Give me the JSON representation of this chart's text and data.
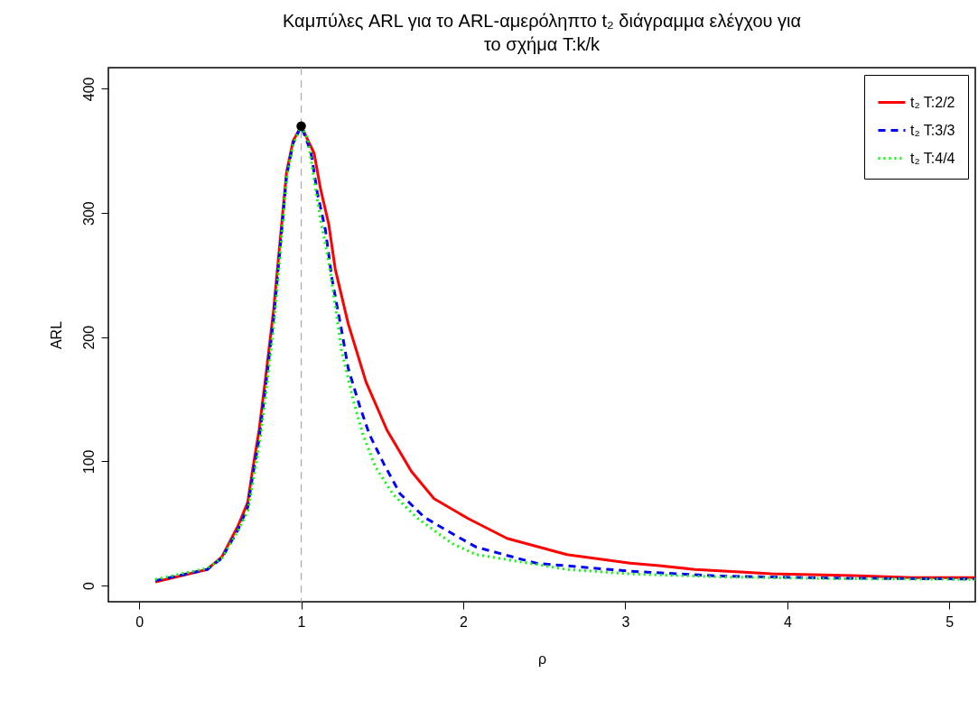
{
  "chart_data": {
    "type": "line",
    "title": "Καμπύλες ARL για το ARL-αμερόληπτο t₂ διάγραμμα ελέγχου για\nτο σχήμα T:k/k",
    "xlabel": "ρ",
    "ylabel": "ARL",
    "xlim": [
      -0.19,
      5.16
    ],
    "ylim": [
      -13,
      417
    ],
    "xticks": [
      0,
      1,
      2,
      3,
      4,
      5
    ],
    "yticks": [
      0,
      100,
      200,
      300,
      400
    ],
    "grid": false,
    "legend": "top right",
    "ref_lines": [
      {
        "axis": "x",
        "value": 1,
        "color": "#aaaaaa",
        "line_style": "dashed"
      }
    ],
    "series": [
      {
        "name": "t₂ T:2/2",
        "color": "#ff0000",
        "line_style": "solid",
        "x": [
          0.1,
          0.42,
          0.51,
          0.61,
          0.67,
          0.7,
          0.74,
          0.78,
          0.83,
          0.87,
          0.91,
          0.95,
          1.0,
          1.08,
          1.12,
          1.17,
          1.21,
          1.29,
          1.4,
          1.53,
          1.68,
          1.82,
          2.03,
          2.27,
          2.64,
          3.03,
          3.21,
          3.43,
          3.71,
          3.9,
          4.4,
          4.77,
          5.16
        ],
        "values": [
          3,
          13,
          23,
          48,
          67,
          93,
          125,
          167,
          222,
          278,
          333,
          358,
          370,
          348,
          319,
          291,
          255,
          211,
          164,
          125,
          92,
          70,
          54,
          38,
          25,
          18,
          16,
          13,
          11,
          9.6,
          8,
          6.5,
          6.5
        ]
      },
      {
        "name": "t₂ T:3/3",
        "color": "#0000ff",
        "line_style": "dashed",
        "x": [
          0.1,
          0.42,
          0.51,
          0.61,
          0.67,
          0.7,
          0.74,
          0.78,
          0.83,
          0.87,
          0.91,
          0.95,
          1.0,
          1.06,
          1.1,
          1.15,
          1.19,
          1.25,
          1.29,
          1.36,
          1.42,
          1.51,
          1.61,
          1.76,
          1.93,
          2.08,
          2.45,
          3.03,
          3.58,
          4.32,
          5.16
        ],
        "values": [
          4,
          13,
          22,
          45,
          63,
          88,
          118,
          160,
          215,
          272,
          330,
          356,
          370,
          349,
          316,
          286,
          247,
          205,
          175,
          145,
          122,
          98,
          74,
          55,
          42,
          31,
          18,
          11.6,
          7.7,
          6,
          5.3
        ]
      },
      {
        "name": "t₂ T:4/4",
        "color": "#00ff00",
        "line_style": "dotted",
        "x": [
          0.1,
          0.42,
          0.51,
          0.61,
          0.67,
          0.7,
          0.74,
          0.78,
          0.83,
          0.87,
          0.91,
          0.95,
          1.0,
          1.04,
          1.08,
          1.12,
          1.17,
          1.21,
          1.25,
          1.32,
          1.38,
          1.46,
          1.57,
          1.72,
          1.93,
          2.08,
          2.64,
          3.03,
          3.58,
          4.32,
          5.16
        ],
        "values": [
          5,
          14,
          22,
          44,
          60,
          82,
          112,
          152,
          208,
          268,
          328,
          355,
          370,
          360,
          327,
          294,
          261,
          225,
          189,
          150,
          122,
          95,
          73,
          54,
          34,
          25,
          13,
          9.4,
          7,
          5.5,
          5
        ]
      },
      {
        "type": "scatter",
        "color": "#000000",
        "marker": "circle",
        "x": [
          1
        ],
        "values": [
          370
        ]
      }
    ]
  }
}
